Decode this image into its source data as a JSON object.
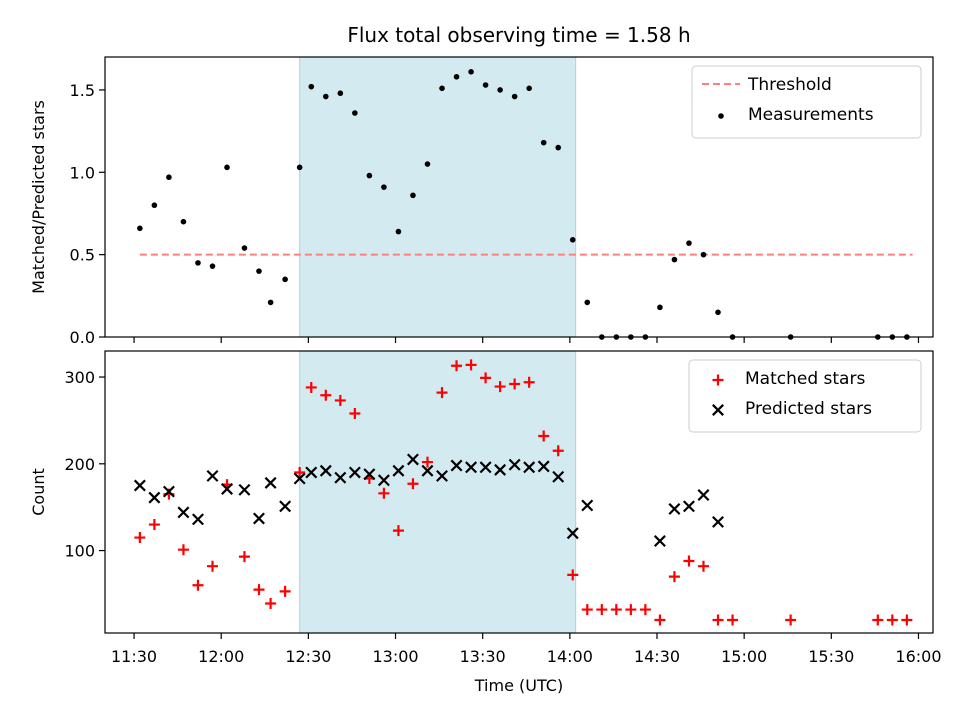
{
  "chart_data": [
    {
      "type": "scatter",
      "title": "Flux total observing time = 1.58 h",
      "xlabel": "",
      "ylabel": "Matched/Predicted stars",
      "xlim": [
        "11:20",
        "16:05"
      ],
      "ylim": [
        0,
        1.7
      ],
      "yticks": [
        0.0,
        0.5,
        1.0,
        1.5
      ],
      "ytick_labels": [
        "0.0",
        "0.5",
        "1.0",
        "1.5"
      ],
      "highlight_span": {
        "start": "12:27",
        "end": "14:02",
        "color": "#d4eaf1"
      },
      "threshold": {
        "name": "Threshold",
        "value": 0.5,
        "x": [
          "11:32",
          "15:58"
        ],
        "color": "#ff7f7f",
        "style": "dashed"
      },
      "legend_position": "upper right",
      "series": [
        {
          "name": "Measurements",
          "color": "#000000",
          "marker": "dot",
          "points": [
            [
              "11:32",
              0.66
            ],
            [
              "11:37",
              0.8
            ],
            [
              "11:42",
              0.97
            ],
            [
              "11:47",
              0.7
            ],
            [
              "11:52",
              0.45
            ],
            [
              "11:57",
              0.43
            ],
            [
              "12:02",
              1.03
            ],
            [
              "12:08",
              0.54
            ],
            [
              "12:13",
              0.4
            ],
            [
              "12:17",
              0.21
            ],
            [
              "12:22",
              0.35
            ],
            [
              "12:27",
              1.03
            ],
            [
              "12:31",
              1.52
            ],
            [
              "12:36",
              1.46
            ],
            [
              "12:41",
              1.48
            ],
            [
              "12:46",
              1.36
            ],
            [
              "12:51",
              0.98
            ],
            [
              "12:56",
              0.91
            ],
            [
              "13:01",
              0.64
            ],
            [
              "13:06",
              0.86
            ],
            [
              "13:11",
              1.05
            ],
            [
              "13:16",
              1.51
            ],
            [
              "13:21",
              1.58
            ],
            [
              "13:26",
              1.61
            ],
            [
              "13:31",
              1.53
            ],
            [
              "13:36",
              1.5
            ],
            [
              "13:41",
              1.46
            ],
            [
              "13:46",
              1.51
            ],
            [
              "13:51",
              1.18
            ],
            [
              "13:56",
              1.15
            ],
            [
              "14:01",
              0.59
            ],
            [
              "14:06",
              0.21
            ],
            [
              "14:11",
              0.0
            ],
            [
              "14:16",
              0.0
            ],
            [
              "14:21",
              0.0
            ],
            [
              "14:26",
              0.0
            ],
            [
              "14:31",
              0.18
            ],
            [
              "14:36",
              0.47
            ],
            [
              "14:41",
              0.57
            ],
            [
              "14:46",
              0.5
            ],
            [
              "14:51",
              0.15
            ],
            [
              "14:56",
              0.0
            ],
            [
              "15:16",
              0.0
            ],
            [
              "15:46",
              0.0
            ],
            [
              "15:51",
              0.0
            ],
            [
              "15:56",
              0.0
            ]
          ]
        }
      ]
    },
    {
      "type": "scatter",
      "title": "",
      "xlabel": "Time (UTC)",
      "ylabel": "Count",
      "xlim": [
        "11:20",
        "16:05"
      ],
      "ylim": [
        5,
        330
      ],
      "yticks": [
        100,
        200,
        300
      ],
      "ytick_labels": [
        "100",
        "200",
        "300"
      ],
      "xticks": [
        "11:30",
        "12:00",
        "12:30",
        "13:00",
        "13:30",
        "14:00",
        "14:30",
        "15:00",
        "15:30",
        "16:00"
      ],
      "highlight_span": {
        "start": "12:27",
        "end": "14:02",
        "color": "#d4eaf1"
      },
      "legend_position": "upper right",
      "series": [
        {
          "name": "Matched stars",
          "color": "#ff0000",
          "marker": "plus",
          "points": [
            [
              "11:32",
              115
            ],
            [
              "11:37",
              130
            ],
            [
              "11:42",
              165
            ],
            [
              "11:47",
              101
            ],
            [
              "11:52",
              60
            ],
            [
              "11:57",
              82
            ],
            [
              "12:02",
              176
            ],
            [
              "12:08",
              93
            ],
            [
              "12:13",
              55
            ],
            [
              "12:17",
              39
            ],
            [
              "12:22",
              53
            ],
            [
              "12:27",
              190
            ],
            [
              "12:31",
              288
            ],
            [
              "12:36",
              279
            ],
            [
              "12:41",
              273
            ],
            [
              "12:46",
              258
            ],
            [
              "12:51",
              183
            ],
            [
              "12:56",
              166
            ],
            [
              "13:01",
              123
            ],
            [
              "13:06",
              177
            ],
            [
              "13:11",
              202
            ],
            [
              "13:16",
              282
            ],
            [
              "13:21",
              313
            ],
            [
              "13:26",
              314
            ],
            [
              "13:31",
              299
            ],
            [
              "13:36",
              289
            ],
            [
              "13:41",
              292
            ],
            [
              "13:46",
              294
            ],
            [
              "13:51",
              232
            ],
            [
              "13:56",
              215
            ],
            [
              "14:01",
              72
            ],
            [
              "14:06",
              32
            ],
            [
              "14:11",
              32
            ],
            [
              "14:16",
              32
            ],
            [
              "14:21",
              32
            ],
            [
              "14:26",
              32
            ],
            [
              "14:31",
              20
            ],
            [
              "14:36",
              70
            ],
            [
              "14:41",
              88
            ],
            [
              "14:46",
              82
            ],
            [
              "14:51",
              20
            ],
            [
              "14:56",
              20
            ],
            [
              "15:16",
              20
            ],
            [
              "15:46",
              20
            ],
            [
              "15:51",
              20
            ],
            [
              "15:56",
              20
            ]
          ]
        },
        {
          "name": "Predicted stars",
          "color": "#000000",
          "marker": "x",
          "points": [
            [
              "11:32",
              175
            ],
            [
              "11:37",
              161
            ],
            [
              "11:42",
              168
            ],
            [
              "11:47",
              144
            ],
            [
              "11:52",
              136
            ],
            [
              "11:57",
              186
            ],
            [
              "12:02",
              171
            ],
            [
              "12:08",
              170
            ],
            [
              "12:13",
              137
            ],
            [
              "12:17",
              178
            ],
            [
              "12:22",
              151
            ],
            [
              "12:27",
              183
            ],
            [
              "12:31",
              190
            ],
            [
              "12:36",
              192
            ],
            [
              "12:41",
              184
            ],
            [
              "12:46",
              190
            ],
            [
              "12:51",
              188
            ],
            [
              "12:56",
              181
            ],
            [
              "13:01",
              192
            ],
            [
              "13:06",
              205
            ],
            [
              "13:11",
              192
            ],
            [
              "13:16",
              186
            ],
            [
              "13:21",
              198
            ],
            [
              "13:26",
              196
            ],
            [
              "13:31",
              196
            ],
            [
              "13:36",
              193
            ],
            [
              "13:41",
              199
            ],
            [
              "13:46",
              196
            ],
            [
              "13:51",
              197
            ],
            [
              "13:56",
              185
            ],
            [
              "14:01",
              120
            ],
            [
              "14:06",
              152
            ],
            [
              "14:31",
              111
            ],
            [
              "14:36",
              148
            ],
            [
              "14:41",
              151
            ],
            [
              "14:46",
              164
            ],
            [
              "14:51",
              133
            ]
          ]
        }
      ]
    }
  ]
}
